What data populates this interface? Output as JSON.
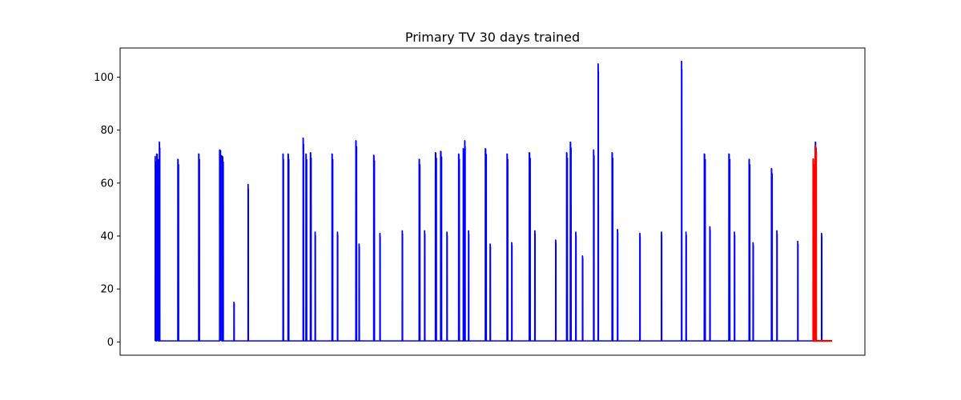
{
  "chart_data": {
    "type": "line",
    "title": "Primary TV 30 days trained",
    "xlabel": "",
    "ylabel": "",
    "x_ticks_visible": false,
    "xlim": [
      0,
      1000
    ],
    "ylim": [
      -5,
      111
    ],
    "y_ticks": [
      "0",
      "20",
      "40",
      "60",
      "80",
      "100"
    ],
    "grid": false,
    "baseline": 0.4,
    "series": [
      {
        "color": "#0000ff",
        "start": 47,
        "end": 953,
        "spikes": [
          [
            47,
            70,
            1.5
          ],
          [
            50,
            71,
            2
          ],
          [
            53,
            75.5,
            0.8
          ],
          [
            78,
            69,
            1.2
          ],
          [
            106,
            71,
            1.2
          ],
          [
            135,
            72.5,
            3
          ],
          [
            138,
            70,
            1.2
          ],
          [
            153,
            15,
            0.6
          ],
          [
            172,
            59.5,
            0.6
          ],
          [
            219,
            71,
            0.8
          ],
          [
            226,
            71,
            1.2
          ],
          [
            246,
            77,
            0.8
          ],
          [
            250,
            71,
            1.2
          ],
          [
            256,
            71.5,
            1.2
          ],
          [
            262,
            41.5,
            0.6
          ],
          [
            285,
            71,
            1.2
          ],
          [
            292,
            41.5,
            0.6
          ],
          [
            317,
            76,
            1.2
          ],
          [
            321,
            37,
            0.6
          ],
          [
            341,
            70.5,
            1.2
          ],
          [
            349,
            41,
            0.6
          ],
          [
            379,
            42,
            0.6
          ],
          [
            402,
            69,
            1.2
          ],
          [
            409,
            42,
            0.6
          ],
          [
            424,
            71.5,
            1.5
          ],
          [
            431,
            72,
            1.5
          ],
          [
            439,
            41.5,
            0.6
          ],
          [
            455,
            71,
            1.2
          ],
          [
            461,
            73,
            0.8
          ],
          [
            463,
            76,
            0.8
          ],
          [
            468,
            42,
            0.6
          ],
          [
            491,
            73,
            1.5
          ],
          [
            497,
            37,
            0.6
          ],
          [
            520,
            71,
            1.2
          ],
          [
            526,
            37.5,
            0.6
          ],
          [
            550,
            71.5,
            1.5
          ],
          [
            557,
            42,
            0.6
          ],
          [
            585,
            38.5,
            0.6
          ],
          [
            600,
            71.5,
            1.2
          ],
          [
            605,
            75.5,
            1.2
          ],
          [
            612,
            41.5,
            0.6
          ],
          [
            621,
            32.5,
            0.6
          ],
          [
            636,
            72.5,
            0.8
          ],
          [
            642,
            105,
            0.6
          ],
          [
            661,
            71.5,
            1.2
          ],
          [
            668,
            42.5,
            0.6
          ],
          [
            698,
            41,
            0.6
          ],
          [
            727,
            41.5,
            0.6
          ],
          [
            754,
            106,
            0.6
          ],
          [
            760,
            41.5,
            0.6
          ],
          [
            785,
            71,
            1.5
          ],
          [
            792,
            43.5,
            0.6
          ],
          [
            818,
            71,
            1.5
          ],
          [
            825,
            41.5,
            0.6
          ],
          [
            845,
            69,
            1.2
          ],
          [
            850,
            37.5,
            0.6
          ],
          [
            875,
            65.5,
            1.2
          ],
          [
            882,
            42,
            0.6
          ],
          [
            910,
            38,
            0.6
          ],
          [
            934,
            75.5,
            1.2
          ],
          [
            942,
            41,
            0.6
          ]
        ]
      },
      {
        "color": "#ff0000",
        "start": 930,
        "end": 956,
        "spikes": [
          [
            931,
            69,
            0.8
          ],
          [
            934,
            74,
            1.2
          ]
        ]
      }
    ]
  }
}
